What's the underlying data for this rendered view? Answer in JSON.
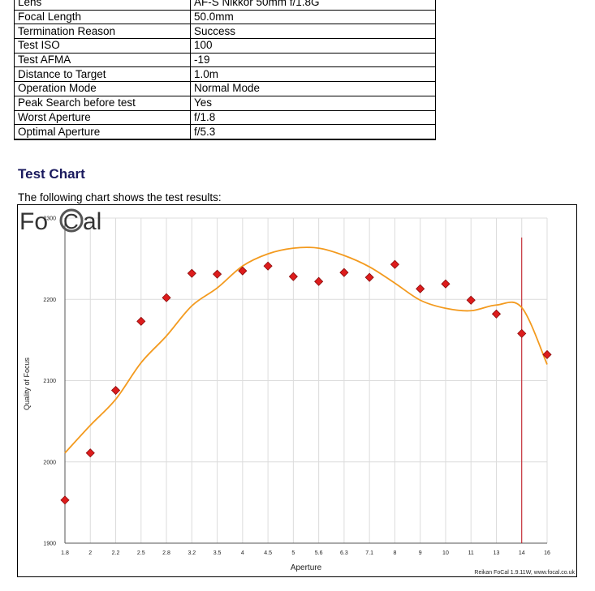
{
  "info_table": {
    "rows": [
      {
        "key": "Lens",
        "value": "AF-S Nikkor 50mm f/1.8G"
      },
      {
        "key": "Focal Length",
        "value": "50.0mm"
      },
      {
        "key": "Termination Reason",
        "value": "Success"
      },
      {
        "key": "Test ISO",
        "value": "100"
      },
      {
        "key": "Test AFMA",
        "value": "-19"
      },
      {
        "key": "Distance to Target",
        "value": "1.0m"
      },
      {
        "key": "Operation Mode",
        "value": "Normal Mode"
      },
      {
        "key": "Peak Search before test",
        "value": "Yes"
      },
      {
        "key": "Worst Aperture",
        "value": "f/1.8"
      },
      {
        "key": "Optimal Aperture",
        "value": "f/5.3"
      }
    ]
  },
  "section": {
    "title": "Test Chart",
    "description": "The following chart shows the test results:"
  },
  "logo": {
    "text_left": "Fo",
    "text_right": "al",
    "ring_letter": "C"
  },
  "footer": "Reikan FoCal 1.9.11W, www.focal.co.uk",
  "chart_data": {
    "type": "scatter",
    "xlabel": "Aperture",
    "ylabel": "Quality of Focus",
    "categories": [
      "1.8",
      "2",
      "2.2",
      "2.5",
      "2.8",
      "3.2",
      "3.5",
      "4",
      "4.5",
      "5",
      "5.6",
      "6.3",
      "7.1",
      "8",
      "9",
      "10",
      "11",
      "13",
      "14",
      "16"
    ],
    "ylim": [
      1900,
      2300
    ],
    "yticks": [
      1900,
      2000,
      2100,
      2200,
      2300
    ],
    "grid": true,
    "series": [
      {
        "type": "scatter",
        "color": "#dd1c1c",
        "values": [
          1953,
          2011,
          2088,
          2173,
          2202,
          2232,
          2231,
          2235,
          2241,
          2228,
          2222,
          2233,
          2227,
          2243,
          2213,
          2219,
          2199,
          2182,
          2158,
          2132
        ]
      },
      {
        "type": "line",
        "color": "#f39a1e",
        "values": [
          2011,
          2045,
          2077,
          2122,
          2155,
          2192,
          2214,
          2241,
          2256,
          2263,
          2263,
          2254,
          2240,
          2220,
          2199,
          2189,
          2186,
          2193,
          2190,
          2120
        ]
      }
    ],
    "marker_line": {
      "x": "14",
      "color": "#c0111b"
    }
  }
}
